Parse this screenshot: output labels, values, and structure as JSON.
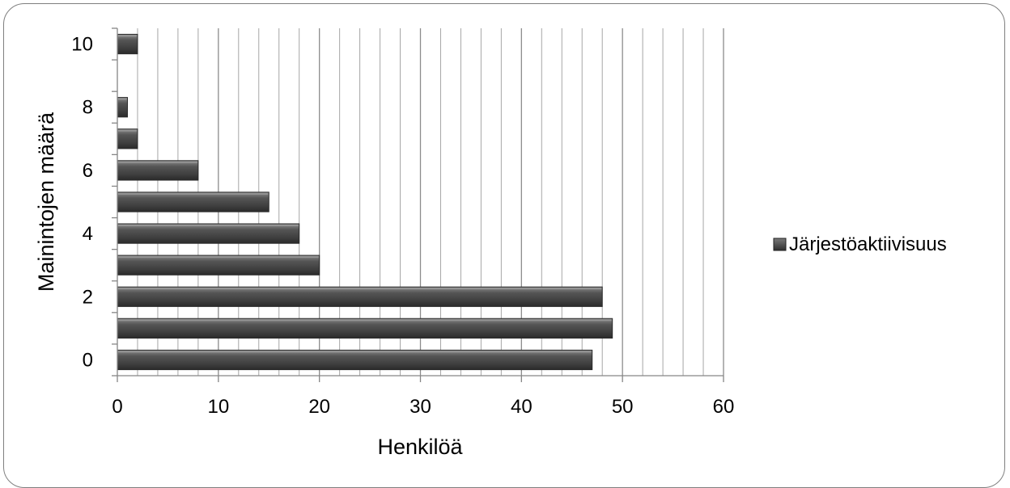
{
  "chart_data": {
    "type": "bar",
    "orientation": "horizontal",
    "categories": [
      0,
      1,
      2,
      3,
      4,
      5,
      6,
      7,
      8,
      9,
      10
    ],
    "series": [
      {
        "name": "Järjestöaktiivisuus",
        "values": [
          47,
          49,
          48,
          20,
          18,
          15,
          8,
          2,
          1,
          null,
          2
        ]
      }
    ],
    "xlabel": "Henkilöä",
    "ylabel": "Mainintojen määrä",
    "xlim": [
      0,
      60
    ],
    "x_ticks": [
      0,
      10,
      20,
      30,
      40,
      50,
      60
    ],
    "y_tick_labels": [
      "0",
      "2",
      "4",
      "6",
      "8",
      "10"
    ],
    "grid": "vertical",
    "legend_position": "right",
    "colors": {
      "bar": "#4a4a4a",
      "bar_highlight": "#9a9a9a",
      "grid": "#a6a6a6",
      "axis": "#868686"
    }
  }
}
